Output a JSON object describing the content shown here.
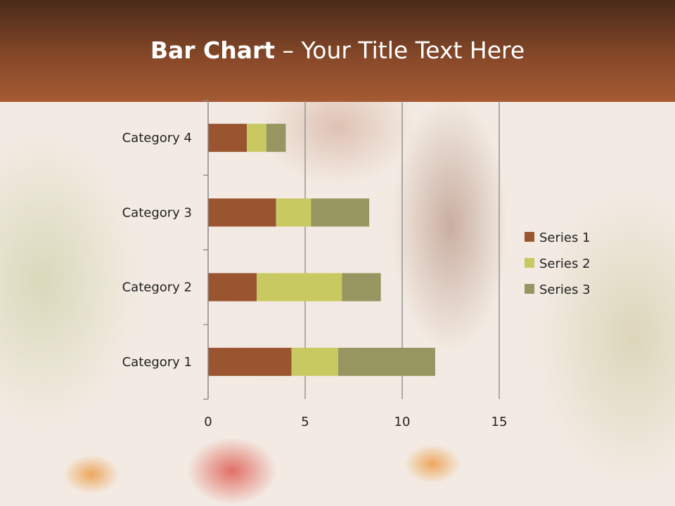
{
  "slide": {
    "title_bold": "Bar Chart",
    "title_rest": " – Your Title Text Here"
  },
  "chart_data": {
    "type": "bar",
    "orientation": "horizontal",
    "stacked": true,
    "categories": [
      "Category 1",
      "Category 2",
      "Category 3",
      "Category 4"
    ],
    "series": [
      {
        "name": "Series 1",
        "values": [
          4.3,
          2.5,
          3.5,
          2.0
        ],
        "color": "#9a5530"
      },
      {
        "name": "Series 2",
        "values": [
          2.4,
          4.4,
          1.8,
          1.0
        ],
        "color": "#c9c962"
      },
      {
        "name": "Series 3",
        "values": [
          5.0,
          2.0,
          3.0,
          1.0
        ],
        "color": "#979660"
      }
    ],
    "xlim": [
      0,
      15
    ],
    "xticks": [
      "0",
      "5",
      "10",
      "15"
    ],
    "grid": "vertical",
    "legend": "right"
  }
}
